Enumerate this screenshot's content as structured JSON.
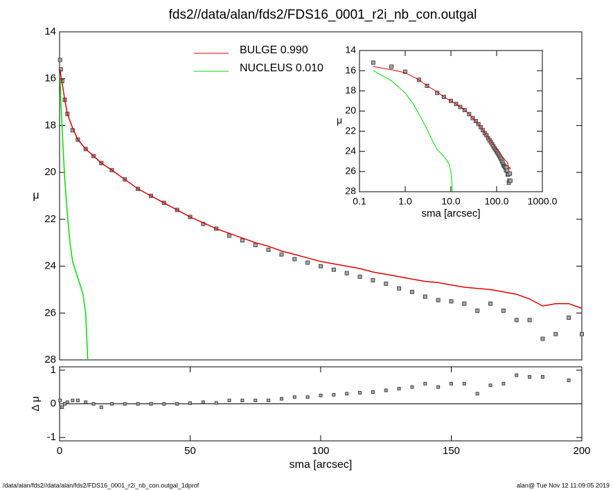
{
  "chart_data": [
    {
      "type": "scatter",
      "title": "fds2//data/alan/fds2/FDS16_0001_r2i_nb_con.outgal",
      "ylabel": "μ",
      "xlim": [
        0,
        200
      ],
      "ylim": [
        14,
        28
      ],
      "yticks": [
        14,
        16,
        18,
        20,
        22,
        24,
        26,
        28
      ],
      "color": "#444444",
      "x": [
        0.2,
        0.5,
        1,
        2,
        3,
        5,
        7,
        10,
        13,
        16,
        20,
        25,
        30,
        35,
        40,
        45,
        50,
        55,
        60,
        65,
        70,
        75,
        80,
        85,
        90,
        95,
        100,
        105,
        110,
        115,
        120,
        125,
        130,
        135,
        140,
        145,
        150,
        155,
        160,
        165,
        170,
        175,
        180,
        185,
        190,
        195,
        200
      ],
      "values": [
        15.2,
        15.6,
        16.1,
        16.9,
        17.5,
        18.2,
        18.6,
        19.0,
        19.3,
        19.6,
        19.9,
        20.3,
        20.7,
        21.0,
        21.3,
        21.6,
        21.9,
        22.2,
        22.4,
        22.7,
        22.9,
        23.1,
        23.3,
        23.5,
        23.7,
        23.85,
        24.0,
        24.15,
        24.3,
        24.45,
        24.6,
        24.75,
        24.95,
        25.1,
        25.3,
        25.45,
        25.5,
        25.6,
        25.9,
        25.6,
        25.9,
        26.3,
        26.3,
        27.1,
        26.9,
        26.2,
        26.9
      ],
      "series": [
        {
          "name": "BULGE  0.990",
          "color": "#e00000",
          "values": [
            15.6,
            15.9,
            16.2,
            16.9,
            17.5,
            18.1,
            18.6,
            19.0,
            19.3,
            19.6,
            19.9,
            20.3,
            20.7,
            21.0,
            21.3,
            21.6,
            21.9,
            22.15,
            22.4,
            22.6,
            22.8,
            23.0,
            23.15,
            23.35,
            23.5,
            23.65,
            23.8,
            23.9,
            24.0,
            24.1,
            24.25,
            24.35,
            24.45,
            24.55,
            24.65,
            24.7,
            24.8,
            24.9,
            24.95,
            25.0,
            25.1,
            25.2,
            25.4,
            25.7,
            25.6,
            25.6,
            25.8
          ]
        },
        {
          "name": "NUCLEUS  0.010",
          "color": "#00dd00",
          "x": [
            0.2,
            0.5,
            1,
            1.5,
            2,
            3,
            4,
            5,
            7,
            9,
            10,
            10.8
          ],
          "values": [
            16.0,
            17.0,
            18.2,
            19.3,
            20.3,
            21.8,
            23.0,
            23.8,
            24.5,
            25.2,
            26.0,
            28.0
          ]
        }
      ]
    },
    {
      "type": "residual",
      "ylabel": "Δ μ",
      "xlabel": "sma [arcsec]",
      "ylim": [
        -1.1,
        1.1
      ],
      "yticks": [
        1,
        0,
        -1
      ],
      "xticks": [
        0,
        50,
        100,
        150,
        200
      ],
      "values": [
        0.1,
        -0.1,
        -0.1,
        0.0,
        0.05,
        0.1,
        0.1,
        0.05,
        0.0,
        -0.1,
        0,
        0,
        0,
        0,
        0,
        0,
        0.02,
        0.05,
        0.03,
        0.1,
        0.1,
        0.1,
        0.1,
        0.15,
        0.2,
        0.2,
        0.25,
        0.27,
        0.3,
        0.33,
        0.35,
        0.4,
        0.45,
        0.5,
        0.6,
        0.5,
        0.6,
        0.6,
        0.3,
        0.55,
        0.6,
        0.85,
        0.8,
        0.8,
        null,
        0.7,
        null
      ]
    },
    {
      "type": "inset",
      "ylabel": "μ",
      "xlabel": "sma [arcsec]",
      "xlog": true,
      "xlim": [
        0.1,
        1000
      ],
      "ylim": [
        14,
        28
      ],
      "xticks": [
        0.1,
        {
          "value": 1,
          "label": "1.0"
        },
        {
          "value": 10,
          "label": "10.0"
        },
        {
          "value": 100,
          "label": "100.0"
        },
        {
          "value": 1000,
          "label": "1000.0"
        }
      ],
      "yticks": [
        14,
        16,
        18,
        20,
        22,
        24,
        26,
        28
      ]
    }
  ],
  "footer": {
    "left": "/data/alan/fds2//data/alan/fds2/FDS16_0001_r2i_nb_con.outgal_1dprof",
    "right": "alan@  Tue Nov 12 11:09:05 2019"
  }
}
